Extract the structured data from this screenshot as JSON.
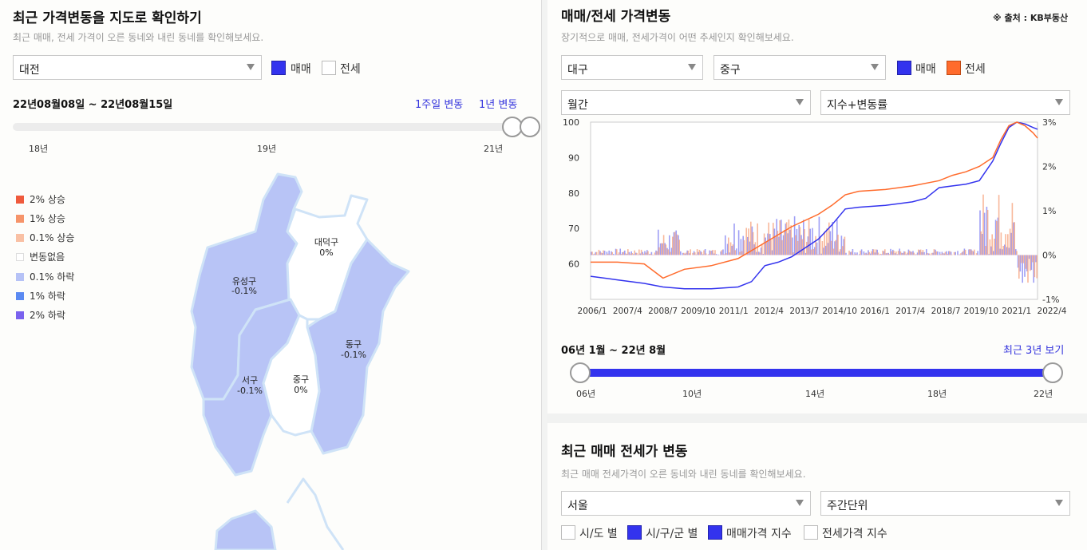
{
  "left": {
    "title": "최근 가격변동을 지도로 확인하기",
    "subtitle": "최근 매매, 전세 가격이 오른 동네와 내린 동네를 확인해보세요.",
    "region_select": "대전",
    "checkbox_sale": "매매",
    "checkbox_jeonse": "전세",
    "date_range": "22년08월08일 ~ 22년08월15일",
    "link_week": "1주일 변동",
    "link_year": "1년 변동",
    "slider_ticks": [
      "18년",
      "19년",
      "21년"
    ],
    "legend": [
      {
        "label": "2% 상승",
        "color": "#ef5a3c"
      },
      {
        "label": "1% 상승",
        "color": "#f6946a"
      },
      {
        "label": "0.1% 상승",
        "color": "#f9c0a4"
      },
      {
        "label": "변동없음",
        "color": "#ffffff"
      },
      {
        "label": "0.1% 하락",
        "color": "#b6c2f6"
      },
      {
        "label": "1% 하락",
        "color": "#5b8af2"
      },
      {
        "label": "2% 하락",
        "color": "#7a62ee"
      }
    ],
    "districts": [
      {
        "name": "유성구",
        "value": "-0.1%"
      },
      {
        "name": "대덕구",
        "value": "0%"
      },
      {
        "name": "동구",
        "value": "-0.1%"
      },
      {
        "name": "서구",
        "value": "-0.1%"
      },
      {
        "name": "중구",
        "value": "0%"
      }
    ],
    "map_colors": {
      "decline_01": "#b8c4f6",
      "none": "#ffffff",
      "outline": "#cfe3f7"
    }
  },
  "right": {
    "title": "매매/전세 가격변동",
    "source": "※ 출처 : KB부동산",
    "subtitle": "장기적으로 매매, 전세가격이 어떤 추세인지 확인해보세요.",
    "city_select": "대구",
    "district_select": "중구",
    "checkbox_sale": "매매",
    "checkbox_jeonse": "전세",
    "period_select": "월간",
    "metric_select": "지수+변동률",
    "range_label": "06년 1월 ~ 22년 8월",
    "link_recent": "최근 3년 보기",
    "range_ticks": [
      "06년",
      "10년",
      "14년",
      "18년",
      "22년"
    ],
    "section2_title": "최근 매매 전세가 변동",
    "section2_subtitle": "최근 매매 전세가격이 오른 동네와 내린 동네를 확인해보세요.",
    "section2_city": "서울",
    "section2_unit": "주간단위",
    "section2_checks": [
      "시/도 별",
      "시/구/군 별",
      "매매가격 지수",
      "전세가격 지수"
    ],
    "colors": {
      "sale": "#3333ee",
      "jeonse": "#ff6b2c"
    }
  },
  "chart_data": {
    "type": "line",
    "x_ticks": [
      "2006/1",
      "2007/4",
      "2008/7",
      "2009/10",
      "2011/1",
      "2012/4",
      "2013/7",
      "2014/10",
      "2016/1",
      "2017/4",
      "2018/7",
      "2019/10",
      "2021/1",
      "2022/4"
    ],
    "y_left_ticks": [
      "100",
      "90",
      "80",
      "70",
      "60"
    ],
    "y_right_ticks": [
      "3%",
      "2%",
      "1%",
      "0%",
      "-1%"
    ],
    "ylim_left": [
      50,
      100
    ],
    "ylim_right": [
      -1,
      3
    ],
    "x_range": [
      2006.0,
      2022.67
    ],
    "series": [
      {
        "name": "매매",
        "kind": "index",
        "color": "#3333ee",
        "x": [
          2006.0,
          2007.0,
          2008.0,
          2008.7,
          2009.5,
          2010.5,
          2011.5,
          2012.0,
          2012.5,
          2013.0,
          2013.5,
          2014.0,
          2014.5,
          2015.0,
          2015.5,
          2016.0,
          2017.0,
          2018.0,
          2018.5,
          2019.0,
          2019.5,
          2020.0,
          2020.5,
          2021.0,
          2021.3,
          2021.6,
          2021.9,
          2022.2,
          2022.5,
          2022.67
        ],
        "y": [
          56.5,
          55.5,
          54.5,
          53.5,
          53.0,
          53.0,
          53.5,
          55.0,
          59.5,
          60.5,
          62.0,
          64.5,
          67.0,
          71.0,
          75.5,
          76.0,
          76.5,
          77.5,
          78.5,
          81.5,
          82.0,
          82.5,
          83.5,
          89.0,
          94.0,
          98.5,
          100.0,
          99.5,
          98.5,
          98.0
        ]
      },
      {
        "name": "전세",
        "kind": "index",
        "color": "#ff6b2c",
        "x": [
          2006.0,
          2007.0,
          2008.0,
          2008.7,
          2009.5,
          2010.5,
          2011.5,
          2012.5,
          2013.5,
          2014.5,
          2015.0,
          2015.5,
          2016.0,
          2017.0,
          2018.0,
          2019.0,
          2019.5,
          2020.0,
          2020.5,
          2021.0,
          2021.3,
          2021.6,
          2021.9,
          2022.2,
          2022.5,
          2022.67
        ],
        "y": [
          60.5,
          60.5,
          60.0,
          56.0,
          58.5,
          59.5,
          61.5,
          66.0,
          70.5,
          74.0,
          76.5,
          79.5,
          80.5,
          81.0,
          82.0,
          83.5,
          85.0,
          86.0,
          87.5,
          90.0,
          95.0,
          99.0,
          100.0,
          99.0,
          97.0,
          95.5
        ]
      }
    ]
  }
}
